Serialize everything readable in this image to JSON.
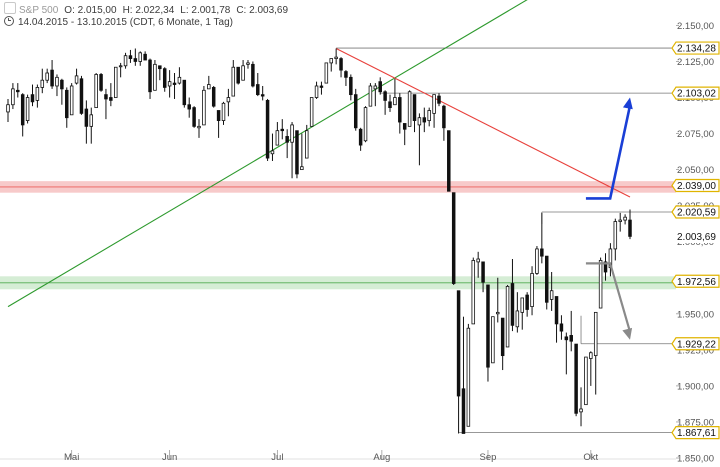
{
  "header": {
    "symbol": "S&P 500",
    "open": "O: 2.015,00",
    "high": "H: 2.022,34",
    "low": "L: 2.001,78",
    "close": "C: 2.003,69",
    "range": "14.04.2015 - 13.10.2015 (CDT, 6 Monate, 1 Tag)"
  },
  "colors": {
    "candle": "#111111",
    "uptrend_line": "#2e9a2e",
    "downtrend_line": "#e8413c",
    "resistance_zone": "#f4b4b4",
    "support_zone": "#c3e6c3",
    "arrow_up": "#1a3fd6",
    "arrow_down": "#8a8a8a",
    "label_border": "#e0b400",
    "grid_text": "#555555"
  },
  "chart_data": {
    "type": "candlestick",
    "title": "S&P 500",
    "period": "14.04.2015 - 13.10.2015",
    "interval": "1 Tag",
    "ylim": [
      1850,
      2160
    ],
    "y_ticks": [
      1850,
      1875,
      1900,
      1925,
      1950,
      1975,
      2000,
      2025,
      2050,
      2075,
      2100,
      2125,
      2150
    ],
    "y_tick_labels": [
      "1.850,00",
      "1.875,00",
      "1.900,00",
      "1.925,00",
      "1.950,00",
      "1.975,00",
      "2.000,00",
      "2.025,00",
      "2.050,00",
      "2.075,00",
      "2.100,00",
      "2.125,00",
      "2.150,00"
    ],
    "x_ticks": [
      "Mai",
      "Jun",
      "Jul",
      "Aug",
      "Sep",
      "Okt"
    ],
    "x_tick_dates": [
      "2015-05-01",
      "2015-06-01",
      "2015-07-01",
      "2015-08-01",
      "2015-09-01",
      "2015-10-01"
    ],
    "grid": false,
    "last_close": 2003.69,
    "price_labels": [
      {
        "value": 2134.28,
        "text": "2.134,28",
        "kind": "level"
      },
      {
        "value": 2103.02,
        "text": "2.103,02",
        "kind": "target"
      },
      {
        "value": 2039.0,
        "text": "2.039,00",
        "kind": "resistance"
      },
      {
        "value": 2020.59,
        "text": "2.020,59",
        "kind": "level"
      },
      {
        "value": 2003.69,
        "text": "2.003,69",
        "kind": "last"
      },
      {
        "value": 1972.56,
        "text": "1.972,56",
        "kind": "support"
      },
      {
        "value": 1929.22,
        "text": "1.929,22",
        "kind": "target"
      },
      {
        "value": 1867.61,
        "text": "1.867,61",
        "kind": "level"
      }
    ],
    "zones": [
      {
        "name": "resistance",
        "from": 2034,
        "to": 2042
      },
      {
        "name": "support",
        "from": 1967,
        "to": 1976
      }
    ],
    "trendlines": [
      {
        "name": "uptrend",
        "from": {
          "date": "2015-04-14",
          "price": 1955
        },
        "to": {
          "date": "2015-10-13",
          "price": 2210
        }
      },
      {
        "name": "downtrend",
        "from": {
          "date": "2015-07-20",
          "price": 2134
        },
        "to": {
          "date": "2015-10-13",
          "price": 2031
        }
      }
    ],
    "level_lines": [
      {
        "value": 2134.28,
        "from": "2015-07-20"
      },
      {
        "value": 2103.02,
        "from": "2015-07-31"
      },
      {
        "value": 2020.59,
        "from": "2015-09-17"
      },
      {
        "value": 1929.22,
        "from": "2015-09-29"
      },
      {
        "value": 1867.61,
        "from": "2015-08-24"
      }
    ],
    "arrows": [
      {
        "name": "target-up",
        "direction": "up",
        "from": {
          "date": "2015-09-30",
          "price": 2030
        },
        "to": {
          "date": "2015-10-13",
          "price": 2100
        }
      },
      {
        "name": "target-down",
        "direction": "down",
        "from": {
          "date": "2015-09-30",
          "price": 1985
        },
        "to": {
          "date": "2015-10-13",
          "price": 1932
        }
      }
    ],
    "candles": [
      {
        "d": "2015-04-14",
        "o": 2090,
        "h": 2099,
        "l": 2083,
        "c": 2095
      },
      {
        "d": "2015-04-15",
        "o": 2095,
        "h": 2110,
        "l": 2092,
        "c": 2106
      },
      {
        "d": "2015-04-16",
        "o": 2105,
        "h": 2110,
        "l": 2100,
        "c": 2104
      },
      {
        "d": "2015-04-17",
        "o": 2102,
        "h": 2103,
        "l": 2073,
        "c": 2081
      },
      {
        "d": "2015-04-20",
        "o": 2084,
        "h": 2102,
        "l": 2082,
        "c": 2100
      },
      {
        "d": "2015-04-21",
        "o": 2102,
        "h": 2109,
        "l": 2094,
        "c": 2097
      },
      {
        "d": "2015-04-22",
        "o": 2098,
        "h": 2109,
        "l": 2093,
        "c": 2107
      },
      {
        "d": "2015-04-23",
        "o": 2107,
        "h": 2120,
        "l": 2103,
        "c": 2112
      },
      {
        "d": "2015-04-24",
        "o": 2112,
        "h": 2120,
        "l": 2110,
        "c": 2117
      },
      {
        "d": "2015-04-27",
        "o": 2119,
        "h": 2126,
        "l": 2106,
        "c": 2108
      },
      {
        "d": "2015-04-28",
        "o": 2108,
        "h": 2116,
        "l": 2101,
        "c": 2114
      },
      {
        "d": "2015-04-29",
        "o": 2112,
        "h": 2113,
        "l": 2095,
        "c": 2106
      },
      {
        "d": "2015-04-30",
        "o": 2105,
        "h": 2107,
        "l": 2079,
        "c": 2086
      },
      {
        "d": "2015-05-01",
        "o": 2088,
        "h": 2110,
        "l": 2088,
        "c": 2108
      },
      {
        "d": "2015-05-04",
        "o": 2110,
        "h": 2120,
        "l": 2109,
        "c": 2115
      },
      {
        "d": "2015-05-05",
        "o": 2113,
        "h": 2115,
        "l": 2088,
        "c": 2089
      },
      {
        "d": "2015-05-06",
        "o": 2092,
        "h": 2098,
        "l": 2068,
        "c": 2080
      },
      {
        "d": "2015-05-07",
        "o": 2080,
        "h": 2093,
        "l": 2068,
        "c": 2088
      },
      {
        "d": "2015-05-08",
        "o": 2093,
        "h": 2117,
        "l": 2093,
        "c": 2116
      },
      {
        "d": "2015-05-11",
        "o": 2116,
        "h": 2117,
        "l": 2104,
        "c": 2105
      },
      {
        "d": "2015-05-12",
        "o": 2102,
        "h": 2106,
        "l": 2085,
        "c": 2099
      },
      {
        "d": "2015-05-13",
        "o": 2100,
        "h": 2110,
        "l": 2094,
        "c": 2098
      },
      {
        "d": "2015-05-14",
        "o": 2100,
        "h": 2121,
        "l": 2100,
        "c": 2121
      },
      {
        "d": "2015-05-15",
        "o": 2122,
        "h": 2124,
        "l": 2114,
        "c": 2122
      },
      {
        "d": "2015-05-18",
        "o": 2122,
        "h": 2131,
        "l": 2120,
        "c": 2129
      },
      {
        "d": "2015-05-19",
        "o": 2129,
        "h": 2133,
        "l": 2124,
        "c": 2127
      },
      {
        "d": "2015-05-20",
        "o": 2127,
        "h": 2134,
        "l": 2122,
        "c": 2125
      },
      {
        "d": "2015-05-21",
        "o": 2125,
        "h": 2132,
        "l": 2122,
        "c": 2131
      },
      {
        "d": "2015-05-22",
        "o": 2130,
        "h": 2132,
        "l": 2126,
        "c": 2126
      },
      {
        "d": "2015-05-26",
        "o": 2126,
        "h": 2127,
        "l": 2099,
        "c": 2104
      },
      {
        "d": "2015-05-27",
        "o": 2105,
        "h": 2126,
        "l": 2105,
        "c": 2123
      },
      {
        "d": "2015-05-28",
        "o": 2122,
        "h": 2122,
        "l": 2112,
        "c": 2120
      },
      {
        "d": "2015-05-29",
        "o": 2120,
        "h": 2121,
        "l": 2104,
        "c": 2107
      },
      {
        "d": "2015-06-01",
        "o": 2108,
        "h": 2119,
        "l": 2100,
        "c": 2111
      },
      {
        "d": "2015-06-02",
        "o": 2110,
        "h": 2117,
        "l": 2099,
        "c": 2109
      },
      {
        "d": "2015-06-03",
        "o": 2110,
        "h": 2121,
        "l": 2109,
        "c": 2114
      },
      {
        "d": "2015-06-04",
        "o": 2112,
        "h": 2112,
        "l": 2093,
        "c": 2095
      },
      {
        "d": "2015-06-05",
        "o": 2095,
        "h": 2100,
        "l": 2086,
        "c": 2092
      },
      {
        "d": "2015-06-08",
        "o": 2093,
        "h": 2094,
        "l": 2079,
        "c": 2080
      },
      {
        "d": "2015-06-09",
        "o": 2079,
        "h": 2085,
        "l": 2072,
        "c": 2080
      },
      {
        "d": "2015-06-10",
        "o": 2081,
        "h": 2108,
        "l": 2081,
        "c": 2105
      },
      {
        "d": "2015-06-11",
        "o": 2106,
        "h": 2115,
        "l": 2106,
        "c": 2109
      },
      {
        "d": "2015-06-12",
        "o": 2107,
        "h": 2108,
        "l": 2093,
        "c": 2094
      },
      {
        "d": "2015-06-15",
        "o": 2091,
        "h": 2091,
        "l": 2072,
        "c": 2084
      },
      {
        "d": "2015-06-16",
        "o": 2084,
        "h": 2097,
        "l": 2081,
        "c": 2096
      },
      {
        "d": "2015-06-17",
        "o": 2097,
        "h": 2106,
        "l": 2087,
        "c": 2100
      },
      {
        "d": "2015-06-18",
        "o": 2101,
        "h": 2126,
        "l": 2101,
        "c": 2121
      },
      {
        "d": "2015-06-19",
        "o": 2121,
        "h": 2121,
        "l": 2109,
        "c": 2110
      },
      {
        "d": "2015-06-22",
        "o": 2112,
        "h": 2126,
        "l": 2112,
        "c": 2122
      },
      {
        "d": "2015-06-23",
        "o": 2123,
        "h": 2126,
        "l": 2120,
        "c": 2124
      },
      {
        "d": "2015-06-24",
        "o": 2123,
        "h": 2125,
        "l": 2107,
        "c": 2108
      },
      {
        "d": "2015-06-25",
        "o": 2109,
        "h": 2117,
        "l": 2101,
        "c": 2102
      },
      {
        "d": "2015-06-26",
        "o": 2102,
        "h": 2108,
        "l": 2098,
        "c": 2101
      },
      {
        "d": "2015-06-29",
        "o": 2098,
        "h": 2099,
        "l": 2056,
        "c": 2058
      },
      {
        "d": "2015-06-30",
        "o": 2061,
        "h": 2075,
        "l": 2056,
        "c": 2063
      },
      {
        "d": "2015-07-01",
        "o": 2067,
        "h": 2083,
        "l": 2067,
        "c": 2077
      },
      {
        "d": "2015-07-02",
        "o": 2078,
        "h": 2085,
        "l": 2071,
        "c": 2077
      },
      {
        "d": "2015-07-06",
        "o": 2073,
        "h": 2078,
        "l": 2058,
        "c": 2069
      },
      {
        "d": "2015-07-07",
        "o": 2069,
        "h": 2083,
        "l": 2044,
        "c": 2081
      },
      {
        "d": "2015-07-08",
        "o": 2077,
        "h": 2077,
        "l": 2044,
        "c": 2047
      },
      {
        "d": "2015-07-09",
        "o": 2050,
        "h": 2075,
        "l": 2050,
        "c": 2052
      },
      {
        "d": "2015-07-10",
        "o": 2058,
        "h": 2081,
        "l": 2058,
        "c": 2077
      },
      {
        "d": "2015-07-13",
        "o": 2080,
        "h": 2100,
        "l": 2080,
        "c": 2100
      },
      {
        "d": "2015-07-14",
        "o": 2100,
        "h": 2111,
        "l": 2099,
        "c": 2108
      },
      {
        "d": "2015-07-15",
        "o": 2108,
        "h": 2111,
        "l": 2102,
        "c": 2107
      },
      {
        "d": "2015-07-16",
        "o": 2110,
        "h": 2124,
        "l": 2110,
        "c": 2124
      },
      {
        "d": "2015-07-17",
        "o": 2124,
        "h": 2127,
        "l": 2118,
        "c": 2127
      },
      {
        "d": "2015-07-20",
        "o": 2127,
        "h": 2134,
        "l": 2123,
        "c": 2128
      },
      {
        "d": "2015-07-21",
        "o": 2127,
        "h": 2128,
        "l": 2114,
        "c": 2119
      },
      {
        "d": "2015-07-22",
        "o": 2118,
        "h": 2119,
        "l": 2108,
        "c": 2114
      },
      {
        "d": "2015-07-23",
        "o": 2114,
        "h": 2116,
        "l": 2098,
        "c": 2102
      },
      {
        "d": "2015-07-24",
        "o": 2102,
        "h": 2106,
        "l": 2077,
        "c": 2079
      },
      {
        "d": "2015-07-27",
        "o": 2078,
        "h": 2079,
        "l": 2063,
        "c": 2067
      },
      {
        "d": "2015-07-28",
        "o": 2070,
        "h": 2094,
        "l": 2069,
        "c": 2093
      },
      {
        "d": "2015-07-29",
        "o": 2094,
        "h": 2110,
        "l": 2094,
        "c": 2108
      },
      {
        "d": "2015-07-30",
        "o": 2106,
        "h": 2110,
        "l": 2094,
        "c": 2108
      },
      {
        "d": "2015-07-31",
        "o": 2111,
        "h": 2114,
        "l": 2102,
        "c": 2104
      },
      {
        "d": "2015-08-03",
        "o": 2104,
        "h": 2105,
        "l": 2088,
        "c": 2098
      },
      {
        "d": "2015-08-04",
        "o": 2097,
        "h": 2102,
        "l": 2090,
        "c": 2093
      },
      {
        "d": "2015-08-05",
        "o": 2095,
        "h": 2113,
        "l": 2095,
        "c": 2100
      },
      {
        "d": "2015-08-06",
        "o": 2100,
        "h": 2103,
        "l": 2075,
        "c": 2083
      },
      {
        "d": "2015-08-07",
        "o": 2082,
        "h": 2082,
        "l": 2067,
        "c": 2078
      },
      {
        "d": "2015-08-10",
        "o": 2080,
        "h": 2105,
        "l": 2080,
        "c": 2104
      },
      {
        "d": "2015-08-11",
        "o": 2102,
        "h": 2102,
        "l": 2076,
        "c": 2084
      },
      {
        "d": "2015-08-12",
        "o": 2081,
        "h": 2089,
        "l": 2053,
        "c": 2086
      },
      {
        "d": "2015-08-13",
        "o": 2086,
        "h": 2093,
        "l": 2076,
        "c": 2083
      },
      {
        "d": "2015-08-14",
        "o": 2084,
        "h": 2093,
        "l": 2080,
        "c": 2091
      },
      {
        "d": "2015-08-17",
        "o": 2089,
        "h": 2102,
        "l": 2079,
        "c": 2102
      },
      {
        "d": "2015-08-18",
        "o": 2101,
        "h": 2103,
        "l": 2094,
        "c": 2096
      },
      {
        "d": "2015-08-19",
        "o": 2094,
        "h": 2095,
        "l": 2070,
        "c": 2079
      },
      {
        "d": "2015-08-20",
        "o": 2077,
        "h": 2077,
        "l": 2035,
        "c": 2035
      },
      {
        "d": "2015-08-21",
        "o": 2034,
        "h": 2034,
        "l": 1970,
        "c": 1971
      },
      {
        "d": "2015-08-24",
        "o": 1966,
        "h": 1966,
        "l": 1867,
        "c": 1893
      },
      {
        "d": "2015-08-25",
        "o": 1898,
        "h": 1948,
        "l": 1867,
        "c": 1867
      },
      {
        "d": "2015-08-26",
        "o": 1872,
        "h": 1943,
        "l": 1872,
        "c": 1940
      },
      {
        "d": "2015-08-27",
        "o": 1943,
        "h": 1989,
        "l": 1943,
        "c": 1987
      },
      {
        "d": "2015-08-28",
        "o": 1986,
        "h": 1993,
        "l": 1975,
        "c": 1988
      },
      {
        "d": "2015-08-31",
        "o": 1986,
        "h": 1986,
        "l": 1965,
        "c": 1972
      },
      {
        "d": "2015-09-01",
        "o": 1970,
        "h": 1970,
        "l": 1903,
        "c": 1913
      },
      {
        "d": "2015-09-02",
        "o": 1916,
        "h": 1948,
        "l": 1916,
        "c": 1948
      },
      {
        "d": "2015-09-03",
        "o": 1950,
        "h": 1975,
        "l": 1944,
        "c": 1951
      },
      {
        "d": "2015-09-04",
        "o": 1947,
        "h": 1947,
        "l": 1911,
        "c": 1921
      },
      {
        "d": "2015-09-08",
        "o": 1927,
        "h": 1970,
        "l": 1927,
        "c": 1969
      },
      {
        "d": "2015-09-09",
        "o": 1971,
        "h": 1988,
        "l": 1938,
        "c": 1942
      },
      {
        "d": "2015-09-10",
        "o": 1941,
        "h": 1965,
        "l": 1937,
        "c": 1952
      },
      {
        "d": "2015-09-11",
        "o": 1951,
        "h": 1961,
        "l": 1939,
        "c": 1961
      },
      {
        "d": "2015-09-14",
        "o": 1963,
        "h": 1965,
        "l": 1948,
        "c": 1953
      },
      {
        "d": "2015-09-15",
        "o": 1955,
        "h": 1983,
        "l": 1949,
        "c": 1978
      },
      {
        "d": "2015-09-16",
        "o": 1978,
        "h": 1997,
        "l": 1977,
        "c": 1995
      },
      {
        "d": "2015-09-17",
        "o": 1995,
        "h": 2020,
        "l": 1985,
        "c": 1990
      },
      {
        "d": "2015-09-18",
        "o": 1990,
        "h": 1990,
        "l": 1953,
        "c": 1958
      },
      {
        "d": "2015-09-21",
        "o": 1960,
        "h": 1979,
        "l": 1952,
        "c": 1966
      },
      {
        "d": "2015-09-22",
        "o": 1962,
        "h": 1962,
        "l": 1930,
        "c": 1943
      },
      {
        "d": "2015-09-23",
        "o": 1943,
        "h": 1949,
        "l": 1932,
        "c": 1938
      },
      {
        "d": "2015-09-24",
        "o": 1934,
        "h": 1937,
        "l": 1908,
        "c": 1932
      },
      {
        "d": "2015-09-25",
        "o": 1935,
        "h": 1952,
        "l": 1924,
        "c": 1931
      },
      {
        "d": "2015-09-28",
        "o": 1929,
        "h": 1929,
        "l": 1879,
        "c": 1881
      },
      {
        "d": "2015-09-29",
        "o": 1882,
        "h": 1899,
        "l": 1872,
        "c": 1884
      },
      {
        "d": "2015-09-30",
        "o": 1887,
        "h": 1920,
        "l": 1887,
        "c": 1920
      },
      {
        "d": "2015-10-01",
        "o": 1919,
        "h": 1924,
        "l": 1900,
        "c": 1923
      },
      {
        "d": "2015-10-02",
        "o": 1921,
        "h": 1951,
        "l": 1894,
        "c": 1951
      },
      {
        "d": "2015-10-05",
        "o": 1954,
        "h": 1989,
        "l": 1954,
        "c": 1987
      },
      {
        "d": "2015-10-06",
        "o": 1986,
        "h": 1992,
        "l": 1973,
        "c": 1979
      },
      {
        "d": "2015-10-07",
        "o": 1982,
        "h": 1999,
        "l": 1976,
        "c": 1995
      },
      {
        "d": "2015-10-08",
        "o": 1995,
        "h": 2016,
        "l": 1987,
        "c": 2014
      },
      {
        "d": "2015-10-09",
        "o": 2014,
        "h": 2020,
        "l": 2007,
        "c": 2015
      },
      {
        "d": "2015-10-12",
        "o": 2015,
        "h": 2019,
        "l": 2012,
        "c": 2017
      },
      {
        "d": "2015-10-13",
        "o": 2015,
        "h": 2022.34,
        "l": 2001.78,
        "c": 2003.69
      }
    ]
  }
}
